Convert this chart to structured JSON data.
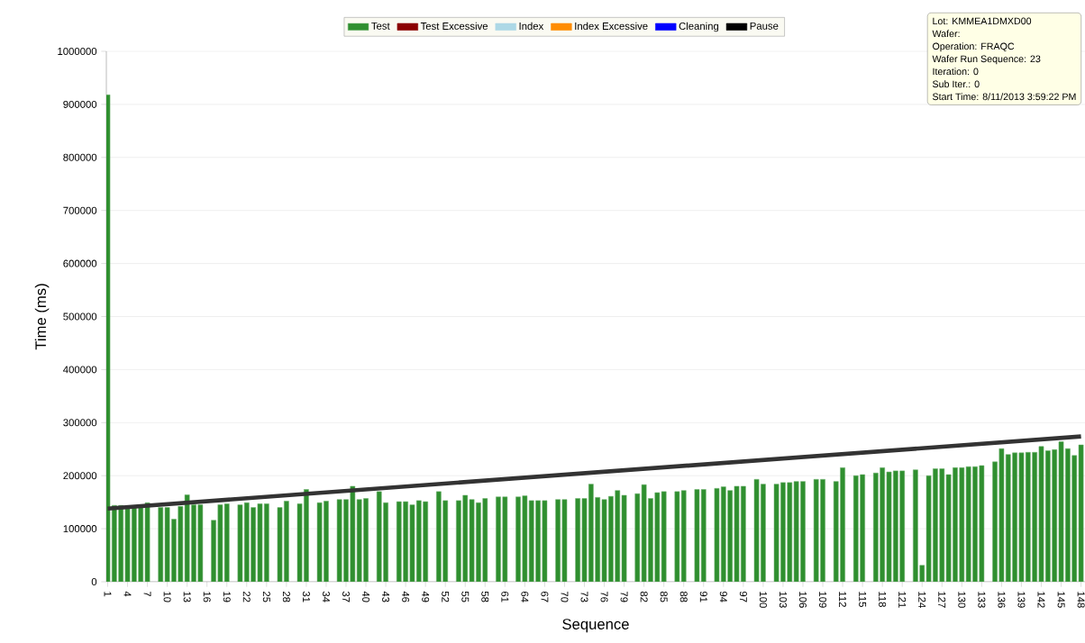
{
  "chart_data": {
    "type": "bar",
    "xlabel": "Sequence",
    "ylabel": "Time (ms)",
    "xlim": [
      0.8,
      148.6
    ],
    "xticks": [
      1,
      4,
      7,
      10,
      13,
      16,
      19,
      22,
      25,
      28,
      31,
      34,
      37,
      40,
      43,
      46,
      49,
      52,
      55,
      58,
      61,
      64,
      67,
      70,
      73,
      76,
      79,
      82,
      85,
      88,
      91,
      94,
      97,
      100,
      103,
      106,
      109,
      112,
      115,
      118,
      121,
      124,
      127,
      130,
      133,
      136,
      139,
      142,
      145,
      148
    ],
    "ylim": [
      0,
      1000000
    ],
    "yticks": [
      0,
      100000,
      200000,
      300000,
      400000,
      500000,
      600000,
      700000,
      800000,
      900000,
      1000000
    ],
    "grid": "y",
    "legend": "top",
    "x": [
      1,
      2,
      3,
      4,
      5,
      6,
      7,
      8,
      9,
      10,
      11,
      12,
      13,
      14,
      15,
      16,
      17,
      18,
      19,
      20,
      21,
      22,
      23,
      24,
      25,
      26,
      27,
      28,
      29,
      30,
      31,
      32,
      33,
      34,
      35,
      36,
      37,
      38,
      39,
      40,
      41,
      42,
      43,
      44,
      45,
      46,
      47,
      48,
      49,
      50,
      51,
      52,
      53,
      54,
      55,
      56,
      57,
      58,
      59,
      60,
      61,
      62,
      63,
      64,
      65,
      66,
      67,
      68,
      69,
      70,
      71,
      72,
      73,
      74,
      75,
      76,
      77,
      78,
      79,
      80,
      81,
      82,
      83,
      84,
      85,
      86,
      87,
      88,
      89,
      90,
      91,
      92,
      93,
      94,
      95,
      96,
      97,
      98,
      99,
      100,
      101,
      102,
      103,
      104,
      105,
      106,
      107,
      108,
      109,
      110,
      111,
      112,
      113,
      114,
      115,
      116,
      117,
      118,
      119,
      120,
      121,
      122,
      123,
      124,
      125,
      126,
      127,
      128,
      129,
      130,
      131,
      132,
      133,
      134,
      135,
      136,
      137,
      138,
      139,
      140,
      141,
      142,
      143,
      144,
      145,
      146,
      147,
      148
    ],
    "annotations": [
      "Lot:  KMMEA1DMXD00",
      "Wafer:",
      "Operation:  FRAQC",
      "Wafer Run Sequence:  23",
      "Iteration:  0",
      "Sub Iter.:  0",
      "Start Time:  8/11/2013 3:59:22 PM"
    ],
    "series": [
      {
        "name": "Test",
        "color": "#2f8f2f",
        "values": [
          918000,
          144000,
          144000,
          142000,
          142000,
          140000,
          149000,
          null,
          140000,
          140000,
          118000,
          142000,
          164000,
          145000,
          145000,
          null,
          116000,
          145000,
          147000,
          null,
          145000,
          149000,
          140000,
          147000,
          147000,
          null,
          140000,
          152000,
          null,
          147000,
          174000,
          null,
          149000,
          152000,
          null,
          155000,
          155000,
          180000,
          155000,
          157000,
          null,
          170000,
          149000,
          null,
          151000,
          151000,
          145000,
          153000,
          151000,
          null,
          170000,
          153000,
          null,
          153000,
          163000,
          155000,
          149000,
          157000,
          null,
          160000,
          160000,
          null,
          160000,
          162000,
          153000,
          153000,
          153000,
          null,
          155000,
          155000,
          null,
          157000,
          157000,
          184000,
          159000,
          155000,
          161000,
          172000,
          163000,
          null,
          166000,
          183000,
          157000,
          168000,
          170000,
          null,
          170000,
          172000,
          null,
          174000,
          174000,
          null,
          176000,
          179000,
          172000,
          180000,
          180000,
          null,
          193000,
          184000,
          null,
          184000,
          187000,
          187000,
          189000,
          189000,
          null,
          193000,
          193000,
          null,
          189000,
          215000,
          null,
          200000,
          202000,
          null,
          205000,
          215000,
          207000,
          209000,
          209000,
          null,
          211000,
          31000,
          200000,
          213000,
          213000,
          202000,
          215000,
          215000,
          217000,
          217000,
          219000,
          null,
          226000,
          251000,
          240000,
          243000,
          243000,
          244000,
          244000,
          255000,
          247000,
          249000,
          264000,
          251000,
          238000,
          258000
        ]
      },
      {
        "name": "Test Excessive",
        "color": "#8b0000",
        "values": [
          null,
          null,
          null,
          null,
          null,
          null,
          null,
          null,
          null,
          null,
          null,
          null,
          null,
          null,
          null,
          null,
          null,
          null,
          null,
          null,
          null,
          null,
          null,
          null,
          null,
          null,
          null,
          null,
          null,
          null,
          null,
          null,
          null,
          null,
          null,
          null,
          null,
          null,
          null,
          null,
          null,
          null,
          null,
          null,
          null,
          null,
          null,
          null,
          null,
          null,
          null,
          null,
          null,
          null,
          null,
          null,
          null,
          null,
          null,
          null,
          null,
          null,
          null,
          null,
          null,
          null,
          null,
          null,
          null,
          null,
          null,
          null,
          null,
          null,
          null,
          null,
          null,
          null,
          null,
          null,
          null,
          null,
          null,
          null,
          null,
          null,
          null,
          null,
          null,
          null,
          null,
          null,
          null,
          null,
          null,
          null,
          null,
          null,
          null,
          null,
          null,
          null,
          null,
          null,
          null,
          null,
          null,
          null,
          null,
          null,
          null,
          null,
          null,
          null,
          null,
          null,
          null,
          null,
          null,
          null,
          null,
          null,
          null,
          null,
          null,
          null,
          null,
          null,
          null,
          null,
          null,
          null,
          null,
          null,
          null,
          null,
          null,
          null,
          null,
          null,
          null,
          null,
          null,
          null,
          null,
          null,
          null,
          null
        ]
      },
      {
        "name": "Index",
        "color": "#add8e6",
        "values": [
          null,
          null,
          null,
          null,
          null,
          null,
          null,
          null,
          null,
          null,
          null,
          null,
          null,
          null,
          null,
          null,
          null,
          null,
          null,
          null,
          null,
          null,
          null,
          null,
          null,
          null,
          null,
          null,
          null,
          null,
          null,
          null,
          null,
          null,
          null,
          null,
          null,
          null,
          null,
          null,
          null,
          null,
          null,
          null,
          null,
          null,
          null,
          null,
          null,
          null,
          null,
          null,
          null,
          null,
          null,
          null,
          null,
          null,
          null,
          null,
          null,
          null,
          null,
          null,
          null,
          null,
          null,
          null,
          null,
          null,
          null,
          null,
          null,
          null,
          null,
          null,
          null,
          null,
          null,
          null,
          null,
          null,
          null,
          null,
          null,
          null,
          null,
          null,
          null,
          null,
          null,
          null,
          null,
          null,
          null,
          null,
          null,
          null,
          null,
          null,
          null,
          null,
          null,
          null,
          null,
          null,
          null,
          null,
          null,
          null,
          null,
          null,
          null,
          null,
          null,
          null,
          null,
          null,
          null,
          null,
          null,
          null,
          null,
          null,
          null,
          null,
          null,
          null,
          null,
          null,
          null,
          null,
          null,
          null,
          null,
          null,
          null,
          null,
          null,
          null,
          null,
          null,
          null,
          null,
          null,
          null,
          null,
          null
        ]
      },
      {
        "name": "Index Excessive",
        "color": "#ff8c00",
        "values": [
          null,
          null,
          null,
          null,
          null,
          null,
          null,
          null,
          null,
          null,
          null,
          null,
          null,
          null,
          null,
          null,
          null,
          null,
          null,
          null,
          null,
          null,
          null,
          null,
          null,
          null,
          null,
          null,
          null,
          null,
          null,
          null,
          null,
          null,
          null,
          null,
          null,
          null,
          null,
          null,
          null,
          null,
          null,
          null,
          null,
          null,
          null,
          null,
          null,
          null,
          null,
          null,
          null,
          null,
          null,
          null,
          null,
          null,
          null,
          null,
          null,
          null,
          null,
          null,
          null,
          null,
          null,
          null,
          null,
          null,
          null,
          null,
          null,
          null,
          null,
          null,
          null,
          null,
          null,
          null,
          null,
          null,
          null,
          null,
          null,
          null,
          null,
          null,
          null,
          null,
          null,
          null,
          null,
          null,
          null,
          null,
          null,
          null,
          null,
          null,
          null,
          null,
          null,
          null,
          null,
          null,
          null,
          null,
          null,
          null,
          null,
          null,
          null,
          null,
          null,
          null,
          null,
          null,
          null,
          null,
          null,
          null,
          null,
          null,
          null,
          null,
          null,
          null,
          null,
          null,
          null,
          null,
          null,
          null,
          null,
          null,
          null,
          null,
          null,
          null,
          null,
          null,
          null,
          null,
          null,
          null,
          null,
          null
        ]
      },
      {
        "name": "Cleaning",
        "color": "#0000ff",
        "values": [
          null,
          null,
          null,
          null,
          null,
          null,
          null,
          null,
          null,
          null,
          null,
          null,
          null,
          null,
          null,
          null,
          null,
          null,
          null,
          null,
          null,
          null,
          null,
          null,
          null,
          null,
          null,
          null,
          null,
          null,
          null,
          null,
          null,
          null,
          null,
          null,
          null,
          null,
          null,
          null,
          null,
          null,
          null,
          null,
          null,
          null,
          null,
          null,
          null,
          null,
          null,
          null,
          null,
          null,
          null,
          null,
          null,
          null,
          null,
          null,
          null,
          null,
          null,
          null,
          null,
          null,
          null,
          null,
          null,
          null,
          null,
          null,
          null,
          null,
          null,
          null,
          null,
          null,
          null,
          null,
          null,
          null,
          null,
          null,
          null,
          null,
          null,
          null,
          null,
          null,
          null,
          null,
          null,
          null,
          null,
          null,
          null,
          null,
          null,
          null,
          null,
          null,
          null,
          null,
          null,
          null,
          null,
          null,
          null,
          null,
          null,
          null,
          null,
          null,
          null,
          null,
          null,
          null,
          null,
          null,
          null,
          null,
          null,
          null,
          null,
          null,
          null,
          null,
          null,
          null,
          null,
          null,
          null,
          null,
          null,
          null,
          null,
          null,
          null,
          null,
          null,
          null,
          null,
          null,
          null,
          null,
          null,
          null
        ]
      },
      {
        "name": "Pause",
        "color": "#000000",
        "values": [
          null,
          null,
          null,
          null,
          null,
          null,
          null,
          null,
          null,
          null,
          null,
          null,
          null,
          null,
          null,
          null,
          null,
          null,
          null,
          null,
          null,
          null,
          null,
          null,
          null,
          null,
          null,
          null,
          null,
          null,
          null,
          null,
          null,
          null,
          null,
          null,
          null,
          null,
          null,
          null,
          null,
          null,
          null,
          null,
          null,
          null,
          null,
          null,
          null,
          null,
          null,
          null,
          null,
          null,
          null,
          null,
          null,
          null,
          null,
          null,
          null,
          null,
          null,
          null,
          null,
          null,
          null,
          null,
          null,
          null,
          null,
          null,
          null,
          null,
          null,
          null,
          null,
          null,
          null,
          null,
          null,
          null,
          null,
          null,
          null,
          null,
          null,
          null,
          null,
          null,
          null,
          null,
          null,
          null,
          null,
          null,
          null,
          null,
          null,
          null,
          null,
          null,
          null,
          null,
          null,
          null,
          null,
          null,
          null,
          null,
          null,
          null,
          null,
          null,
          null,
          null,
          null,
          null,
          null,
          null,
          null,
          null,
          null,
          null,
          null,
          null,
          null,
          null,
          null,
          null,
          null,
          null,
          null,
          null,
          null,
          null,
          null,
          null,
          null,
          null,
          null,
          null,
          null,
          null,
          null,
          null,
          null,
          null
        ]
      },
      {
        "type": "line",
        "color": "#333333",
        "x": [
          1,
          148
        ],
        "values": [
          138000,
          274000
        ]
      }
    ]
  }
}
